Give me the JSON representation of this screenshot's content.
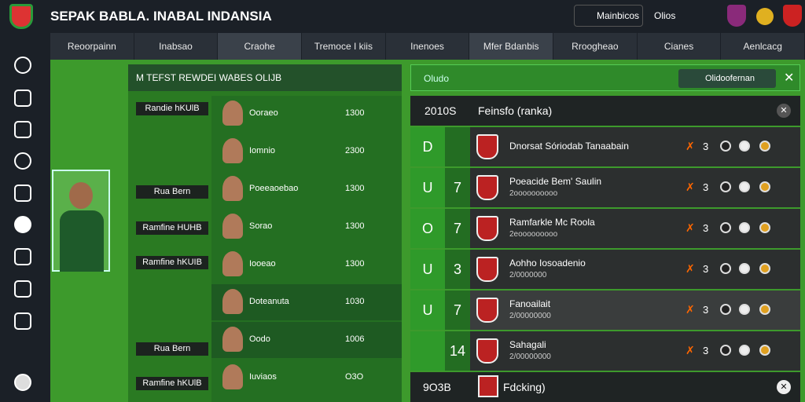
{
  "header": {
    "title": "SEPAK BABLA. INABAL INDANSIA",
    "button": "Mainbicos",
    "status": "Olios"
  },
  "nav": {
    "tabs": [
      "Reoorpainn",
      "Inabsao",
      "Craohe",
      "Tremoce I kiis",
      "Inenoes",
      "Mfer Bdanbis",
      "Rroogheao",
      "Cianes",
      "Aenlcacg"
    ]
  },
  "left_panel": {
    "title": "M TEFST REWDEI WABES OLIJB",
    "tags": [
      "Randie hKUlB",
      "Rua Bern",
      "Ramfine HUHB",
      "Ramfine hKUIB",
      "Rua Bern",
      "Ramfine hKUlB"
    ],
    "players": [
      {
        "name": "Ooraeo",
        "value": "1300"
      },
      {
        "name": "Iomnio",
        "value": "2300"
      },
      {
        "name": "Poeeaoebao",
        "value": "1300"
      },
      {
        "name": "Sorao",
        "value": "1300"
      },
      {
        "name": "Iooeao",
        "value": "1300"
      },
      {
        "name": "Doteanuta",
        "value": "1030"
      },
      {
        "name": "Oodo",
        "value": "1006"
      },
      {
        "name": "Iuviaos",
        "value": "O3O"
      }
    ]
  },
  "right_panel": {
    "title": "Oludo",
    "search": "Olidoofernan",
    "table": {
      "col1": "2010S",
      "col2": "Feinsfo (ranka)",
      "rows": [
        {
          "pos": "D",
          "rank": "",
          "name": "Dnorsat Sóriodab Tanaabain",
          "sub": "",
          "num": "3"
        },
        {
          "pos": "U",
          "rank": "7",
          "name": "Poeacide Bem' Saulin",
          "sub": "2oooooooooo",
          "num": "3"
        },
        {
          "pos": "O",
          "rank": "7",
          "name": "Ramfarkle Mc Roola",
          "sub": "2eooooooooo",
          "num": "3"
        },
        {
          "pos": "U",
          "rank": "3",
          "name": "Aohho Iosoadenio",
          "sub": "2/0000000",
          "num": "3"
        },
        {
          "pos": "U",
          "rank": "7",
          "name": "Fanoailait",
          "sub": "2/00000000",
          "num": "3"
        },
        {
          "pos": "",
          "rank": "14",
          "name": "Sahagali",
          "sub": "2/00000000",
          "num": "3"
        }
      ]
    },
    "footer": {
      "col1": "9O3B",
      "col2": "Fdcking)"
    }
  }
}
